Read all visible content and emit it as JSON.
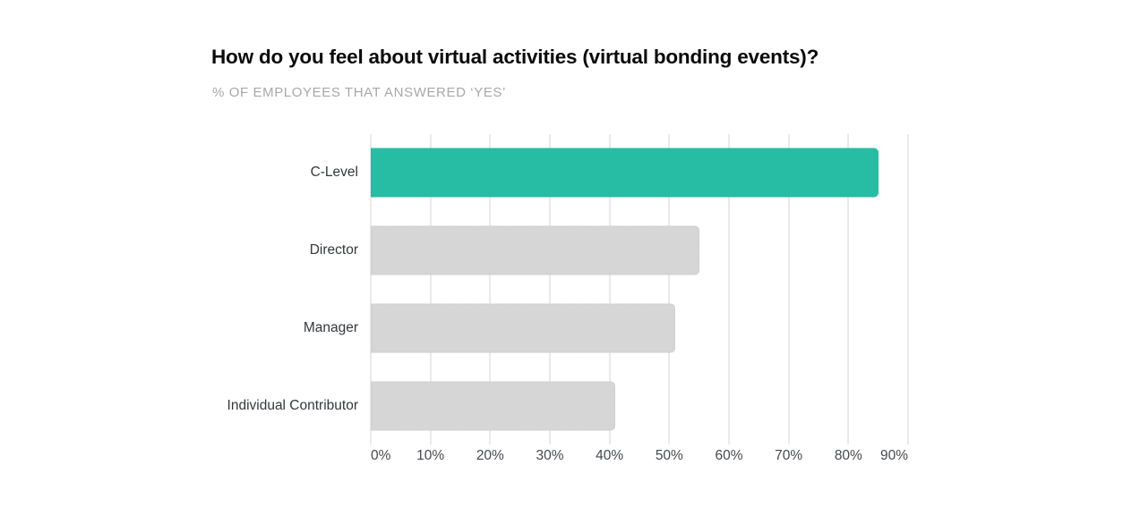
{
  "header": {
    "title": "How do you feel about virtual activities (virtual bonding events)?",
    "subtitle": "% OF EMPLOYEES THAT ANSWERED ‘YES’"
  },
  "colors": {
    "highlight_bar": "#27bca4",
    "default_bar": "#d6d6d6",
    "gridline": "#e9eaea",
    "subtitle_text": "#a8a8a8",
    "axis_text": "#45494e",
    "category_text": "#34383c"
  },
  "chart_data": {
    "type": "bar",
    "orientation": "horizontal",
    "title": "How do you feel about virtual activities (virtual bonding events)?",
    "subtitle": "% OF EMPLOYEES THAT ANSWERED ‘YES’",
    "categories": [
      "C-Level",
      "Director",
      "Manager",
      "Individual Contributor"
    ],
    "values": [
      85,
      55,
      51,
      41
    ],
    "unit": "%",
    "xlabel": "",
    "ylabel": "",
    "xlim": [
      0,
      90
    ],
    "x_ticks": [
      "0%",
      "10%",
      "20%",
      "30%",
      "40%",
      "50%",
      "60%",
      "70%",
      "80%",
      "90%"
    ],
    "grid": "vertical-only",
    "legend": "none",
    "bar_colors": [
      "#27bca4",
      "#d6d6d6",
      "#d6d6d6",
      "#d6d6d6"
    ],
    "highlight_index": 0
  }
}
